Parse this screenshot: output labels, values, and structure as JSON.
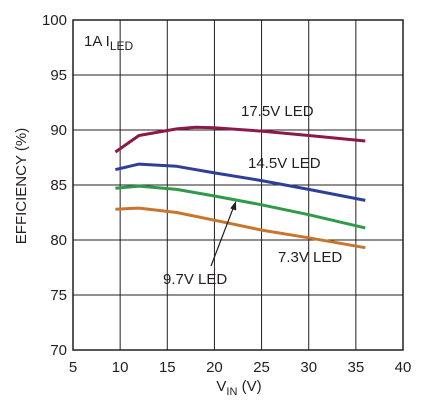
{
  "chart_data": {
    "type": "line",
    "title": "",
    "xlabel": {
      "main": "V",
      "sub": "IN",
      "unit": " (V)"
    },
    "ylabel": "EFFICIENCY (%)",
    "xlim": [
      5,
      40
    ],
    "ylim": [
      70,
      100
    ],
    "x_ticks": [
      5,
      10,
      15,
      20,
      25,
      30,
      35,
      40
    ],
    "y_ticks": [
      70,
      75,
      80,
      85,
      90,
      95,
      100
    ],
    "grid": true,
    "legend": "none",
    "annotation": {
      "main": "1A I",
      "sub": "LED"
    },
    "series": [
      {
        "name": "17.5V LED",
        "color": "#8b1a4a",
        "x": [
          9.5,
          12,
          16,
          18,
          20,
          25,
          30,
          36
        ],
        "y": [
          88.0,
          89.5,
          90.1,
          90.25,
          90.2,
          89.9,
          89.5,
          89.0
        ]
      },
      {
        "name": "14.5V LED",
        "color": "#2e3f98",
        "x": [
          9.5,
          12,
          16,
          20,
          25,
          30,
          36
        ],
        "y": [
          86.4,
          86.9,
          86.7,
          86.1,
          85.4,
          84.6,
          83.6
        ]
      },
      {
        "name": "9.7V LED",
        "color": "#2e9a4a",
        "x": [
          9.5,
          12,
          16,
          20,
          25,
          30,
          36
        ],
        "y": [
          84.7,
          84.9,
          84.6,
          84.0,
          83.2,
          82.3,
          81.1
        ]
      },
      {
        "name": "7.3V LED",
        "color": "#c8762e",
        "x": [
          9.5,
          12,
          16,
          20,
          25,
          30,
          36
        ],
        "y": [
          82.8,
          82.9,
          82.5,
          81.8,
          80.9,
          80.2,
          79.3
        ]
      }
    ]
  }
}
